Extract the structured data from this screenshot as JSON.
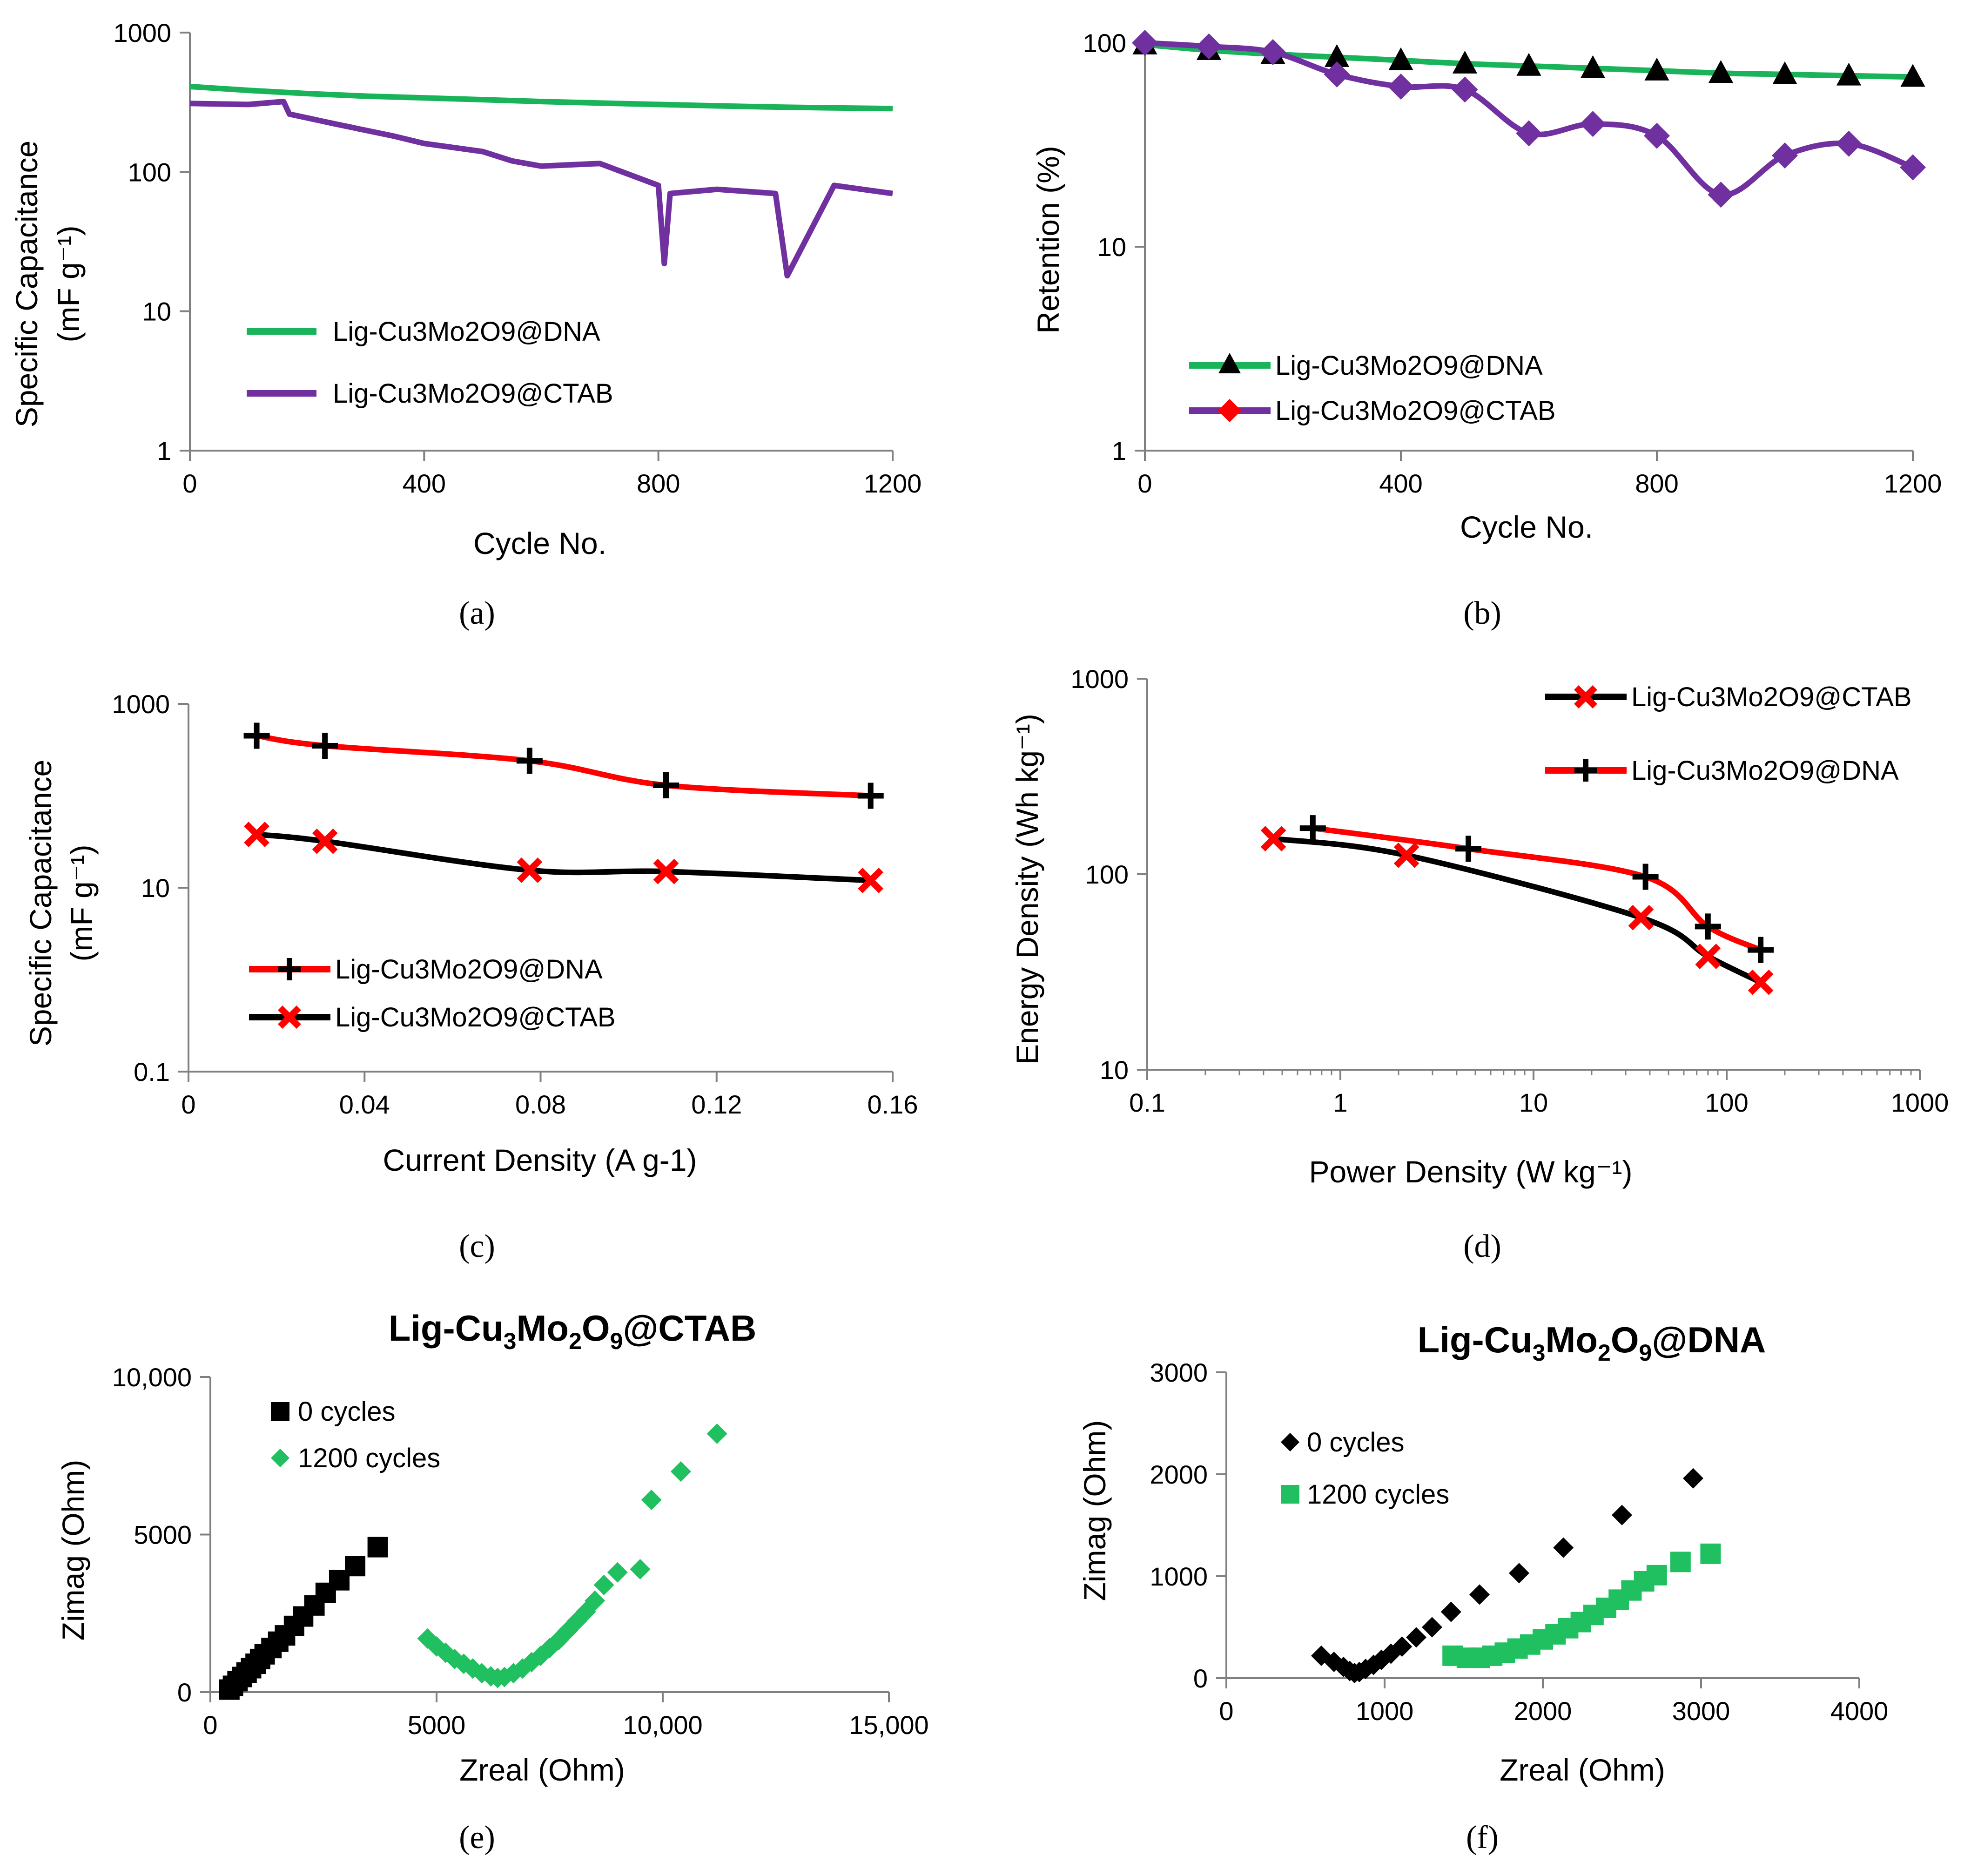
{
  "colors": {
    "green": "#19b35a",
    "purple": "#7030a0",
    "red": "#ff0000",
    "black": "#000000",
    "eisgreen": "#20c060"
  },
  "chart_data": [
    {
      "id": "a",
      "type": "line",
      "caption": "(a)",
      "xlabel": "Cycle No.",
      "ylabel": "Specific Capacitance",
      "ylabel_unit": "(mF g⁻¹)",
      "xlim": [
        0,
        1200
      ],
      "ylim": [
        1,
        1000
      ],
      "yscale": "log",
      "xticks": [
        "0",
        "400",
        "800",
        "1200"
      ],
      "yticks": [
        "1",
        "10",
        "100",
        "1000"
      ],
      "series": [
        {
          "name": "Lig-Cu3Mo2O9@DNA",
          "color": "#19b35a",
          "x": [
            0,
            100,
            200,
            300,
            400,
            500,
            600,
            700,
            800,
            900,
            1000,
            1100,
            1200
          ],
          "y": [
            410,
            385,
            365,
            350,
            340,
            330,
            320,
            312,
            305,
            298,
            292,
            288,
            285
          ]
        },
        {
          "name": "Lig-Cu3Mo2O9@CTAB",
          "color": "#7030a0",
          "x": [
            0,
            100,
            160,
            170,
            250,
            350,
            400,
            500,
            550,
            600,
            700,
            800,
            810,
            820,
            900,
            1000,
            1020,
            1100,
            1200
          ],
          "y": [
            310,
            305,
            320,
            260,
            220,
            180,
            160,
            140,
            120,
            110,
            115,
            80,
            22,
            70,
            75,
            70,
            18,
            80,
            70
          ]
        }
      ]
    },
    {
      "id": "b",
      "type": "line",
      "caption": "(b)",
      "xlabel": "Cycle No.",
      "ylabel": "Retention (%)",
      "xlim": [
        0,
        1200
      ],
      "ylim": [
        1,
        100
      ],
      "yscale": "log",
      "xticks": [
        "0",
        "400",
        "800",
        "1200"
      ],
      "yticks": [
        "1",
        "10",
        "100"
      ],
      "series": [
        {
          "name": "Lig-Cu3Mo2O9@DNA",
          "color": "#19b35a",
          "marker": "triangle",
          "x": [
            0,
            100,
            200,
            300,
            400,
            500,
            600,
            700,
            800,
            900,
            1000,
            1100,
            1200
          ],
          "y": [
            98,
            92,
            88,
            85,
            82,
            79,
            77,
            75,
            73,
            71,
            70,
            69,
            68
          ]
        },
        {
          "name": "Lig-Cu3Mo2O9@CTAB",
          "color": "#7030a0",
          "marker": "diamond",
          "x": [
            0,
            100,
            200,
            300,
            400,
            500,
            600,
            700,
            800,
            900,
            1000,
            1100,
            1200
          ],
          "y": [
            100,
            96,
            90,
            70,
            61,
            59,
            36,
            40,
            35,
            18,
            28,
            32,
            24.5
          ]
        }
      ]
    },
    {
      "id": "c",
      "type": "line",
      "caption": "(c)",
      "xlabel": "Current Density (A g-1)",
      "ylabel": "Specific Capacitance",
      "ylabel_unit": "(mF g⁻¹)",
      "xlim": [
        0,
        0.16
      ],
      "ylim": [
        0.1,
        1000
      ],
      "yscale": "log",
      "xticks": [
        "0",
        "0.04",
        "0.08",
        "0.12",
        "0.16"
      ],
      "yticks": [
        "0.1",
        "10",
        "1000"
      ],
      "series": [
        {
          "name": "Lig-Cu3Mo2O9@DNA",
          "color": "#ff0000",
          "marker": "plus",
          "x": [
            0.0155,
            0.031,
            0.0775,
            0.1085,
            0.155
          ],
          "y": [
            450,
            350,
            240,
            130,
            100
          ]
        },
        {
          "name": "Lig-Cu3Mo2O9@CTAB",
          "color": "#000000",
          "marker": "x",
          "x": [
            0.0155,
            0.031,
            0.0775,
            0.1085,
            0.155
          ],
          "y": [
            38,
            32,
            15.5,
            15,
            12
          ]
        }
      ]
    },
    {
      "id": "d",
      "type": "line",
      "caption": "(d)",
      "xlabel": "Power Density (W kg⁻¹)",
      "ylabel": "Energy Density (Wh kg⁻¹)",
      "xlim": [
        0.1,
        1000
      ],
      "ylim": [
        10,
        1000
      ],
      "xscale": "log",
      "yscale": "log",
      "xticks": [
        "0.1",
        "1",
        "10",
        "100",
        "1000"
      ],
      "yticks": [
        "10",
        "100",
        "1000"
      ],
      "series": [
        {
          "name": "Lig-Cu3Mo2O9@CTAB",
          "color": "#000000",
          "marker": "x",
          "x": [
            0.45,
            2.2,
            36,
            80,
            150
          ],
          "y": [
            152,
            125,
            60,
            38,
            28
          ]
        },
        {
          "name": "Lig-Cu3Mo2O9@DNA",
          "color": "#ff0000",
          "marker": "plus",
          "x": [
            0.72,
            4.6,
            38,
            80,
            150
          ],
          "y": [
            172,
            135,
            97,
            54,
            41
          ]
        }
      ]
    },
    {
      "id": "e",
      "type": "scatter",
      "caption": "(e)",
      "title": {
        "pre": "Lig-Cu",
        "s1": "3",
        "mid1": "Mo",
        "s2": "2",
        "mid2": "O",
        "s3": "9",
        "post": "@CTAB"
      },
      "xlabel": "Zreal (Ohm)",
      "ylabel": "Zimag (Ohm)",
      "xlim": [
        0,
        15000
      ],
      "ylim": [
        0,
        10000
      ],
      "xticks": [
        "0",
        "5000",
        "10,000",
        "15,000"
      ],
      "yticks": [
        "0",
        "5000",
        "10,000"
      ],
      "series": [
        {
          "name": "0 cycles",
          "color": "#000000",
          "marker": "square",
          "x": [
            420,
            500,
            600,
            700,
            800,
            900,
            1000,
            1100,
            1200,
            1350,
            1500,
            1650,
            1850,
            2050,
            2300,
            2550,
            2850,
            3200,
            3700
          ],
          "y": [
            80,
            200,
            350,
            480,
            620,
            760,
            900,
            1050,
            1200,
            1400,
            1600,
            1800,
            2100,
            2400,
            2750,
            3150,
            3550,
            4000,
            4600
          ]
        },
        {
          "name": "1200 cycles",
          "color": "#20c060",
          "marker": "diamond",
          "x": [
            4800,
            5000,
            5200,
            5400,
            5600,
            5800,
            6000,
            6200,
            6350,
            6500,
            6700,
            6900,
            7100,
            7300,
            7500,
            7700,
            7900,
            8100,
            8300,
            8500,
            8700,
            9000,
            9500,
            9750,
            10400,
            11200
          ],
          "y": [
            1700,
            1450,
            1250,
            1050,
            900,
            750,
            600,
            500,
            450,
            480,
            600,
            750,
            950,
            1150,
            1400,
            1650,
            1950,
            2250,
            2550,
            2900,
            3400,
            3800,
            3900,
            6100,
            7000,
            8200
          ]
        }
      ]
    },
    {
      "id": "f",
      "type": "scatter",
      "caption": "(f)",
      "title": {
        "pre": "Lig-Cu",
        "s1": "3",
        "mid1": "Mo",
        "s2": "2",
        "mid2": "O",
        "s3": "9",
        "post": "@DNA"
      },
      "xlabel": "Zreal (Ohm)",
      "ylabel": "Zimag (Ohm)",
      "xlim": [
        0,
        4000
      ],
      "ylim": [
        0,
        3000
      ],
      "xticks": [
        "0",
        "1000",
        "2000",
        "3000",
        "4000"
      ],
      "yticks": [
        "0",
        "1000",
        "2000",
        "3000"
      ],
      "series": [
        {
          "name": "0 cycles",
          "color": "#000000",
          "marker": "diamond",
          "x": [
            600,
            680,
            740,
            780,
            810,
            840,
            880,
            930,
            980,
            1040,
            1110,
            1200,
            1300,
            1420,
            1600,
            1850,
            2130,
            2500,
            2950
          ],
          "y": [
            220,
            160,
            110,
            70,
            50,
            60,
            90,
            130,
            180,
            240,
            310,
            400,
            500,
            650,
            820,
            1030,
            1280,
            1600,
            1960
          ]
        },
        {
          "name": "1200 cycles",
          "color": "#20c060",
          "marker": "square",
          "x": [
            1430,
            1520,
            1600,
            1680,
            1760,
            1840,
            1920,
            2000,
            2080,
            2160,
            2240,
            2320,
            2400,
            2480,
            2560,
            2640,
            2720,
            2870,
            3060
          ],
          "y": [
            220,
            200,
            200,
            220,
            250,
            290,
            330,
            380,
            430,
            490,
            550,
            620,
            690,
            770,
            860,
            950,
            1010,
            1140,
            1220
          ]
        }
      ]
    }
  ]
}
